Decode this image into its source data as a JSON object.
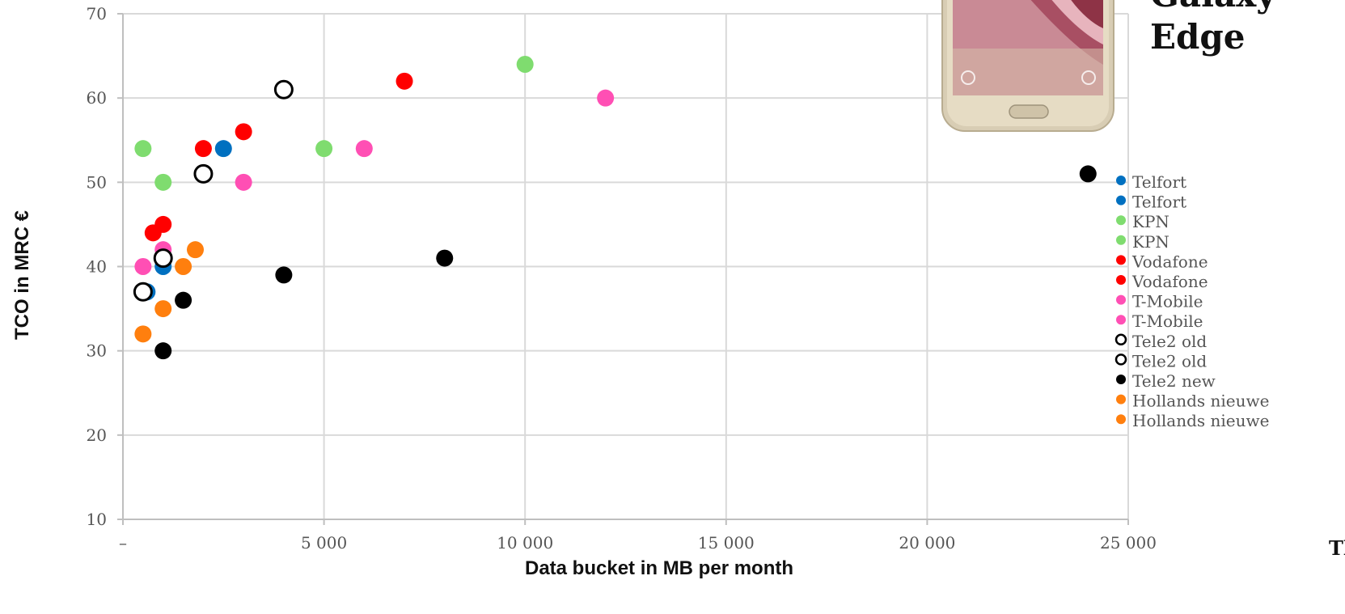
{
  "chart_data": {
    "type": "scatter",
    "title": "",
    "xlabel": "Data bucket in MB per month",
    "ylabel": "TCO in MRC €",
    "xlim": [
      0,
      25000
    ],
    "ylim": [
      10,
      70
    ],
    "x_ticks": [
      0,
      5000,
      10000,
      15000,
      20000,
      25000
    ],
    "x_tick_labels": [
      "–",
      "5 000",
      "10 000",
      "15 000",
      "20 000",
      "25 000"
    ],
    "y_ticks": [
      10,
      20,
      30,
      40,
      50,
      60,
      70
    ],
    "y_tick_labels": [
      "10",
      "20",
      "30",
      "40",
      "50",
      "60",
      "70"
    ],
    "grid": true,
    "legend_position": "right",
    "series": [
      {
        "name": "Telfort",
        "color": "#0070C0",
        "hollow": false,
        "points": [
          [
            600,
            37
          ],
          [
            1000,
            40
          ],
          [
            2500,
            54
          ]
        ]
      },
      {
        "name": "KPN",
        "color": "#7FDC6F",
        "hollow": false,
        "points": [
          [
            500,
            54
          ],
          [
            1000,
            50
          ],
          [
            5000,
            54
          ],
          [
            10000,
            64
          ]
        ]
      },
      {
        "name": "Vodafone",
        "color": "#FF0000",
        "hollow": false,
        "points": [
          [
            750,
            44
          ],
          [
            1000,
            45
          ],
          [
            2000,
            54
          ],
          [
            3000,
            56
          ],
          [
            7000,
            62
          ]
        ]
      },
      {
        "name": "T-Mobile",
        "color": "#FF4FB4",
        "hollow": false,
        "points": [
          [
            500,
            40
          ],
          [
            1000,
            42
          ],
          [
            3000,
            50
          ],
          [
            6000,
            54
          ],
          [
            12000,
            60
          ]
        ]
      },
      {
        "name": "Hollands nieuwe",
        "color": "#FF7F0E",
        "hollow": false,
        "points": [
          [
            500,
            32
          ],
          [
            1000,
            35
          ],
          [
            1500,
            40
          ],
          [
            1800,
            42
          ]
        ]
      },
      {
        "name": "Tele2 new",
        "color": "#000000",
        "hollow": false,
        "points": [
          [
            1000,
            30
          ],
          [
            1500,
            36
          ],
          [
            4000,
            39
          ],
          [
            8000,
            41
          ],
          [
            24000,
            51
          ]
        ]
      },
      {
        "name": "Tele2 old",
        "color": "#000000",
        "hollow": true,
        "points": [
          [
            500,
            37
          ],
          [
            1000,
            41
          ],
          [
            2000,
            51
          ],
          [
            4000,
            61
          ]
        ]
      }
    ],
    "legend_entries": [
      {
        "name": "Telfort",
        "color": "#0070C0",
        "hollow": false
      },
      {
        "name": "Telfort",
        "color": "#0070C0",
        "hollow": false
      },
      {
        "name": "KPN",
        "color": "#7FDC6F",
        "hollow": false
      },
      {
        "name": "KPN",
        "color": "#7FDC6F",
        "hollow": false
      },
      {
        "name": "Vodafone",
        "color": "#FF0000",
        "hollow": false
      },
      {
        "name": "Vodafone",
        "color": "#FF0000",
        "hollow": false
      },
      {
        "name": "T-Mobile",
        "color": "#FF4FB4",
        "hollow": false
      },
      {
        "name": "T-Mobile",
        "color": "#FF4FB4",
        "hollow": false
      },
      {
        "name": "Tele2 old",
        "color": "#000000",
        "hollow": true
      },
      {
        "name": "Tele2 old",
        "color": "#000000",
        "hollow": true
      },
      {
        "name": "Tele2 new",
        "color": "#000000",
        "hollow": false
      },
      {
        "name": "Hollands nieuwe",
        "color": "#FF7F0E",
        "hollow": false
      },
      {
        "name": "Hollands nieuwe",
        "color": "#FF7F0E",
        "hollow": false
      }
    ]
  },
  "headline": {
    "line1": "Galaxy",
    "line2": "Edge"
  },
  "corner_text": "Tl",
  "phone_icon": "smartphone-image"
}
